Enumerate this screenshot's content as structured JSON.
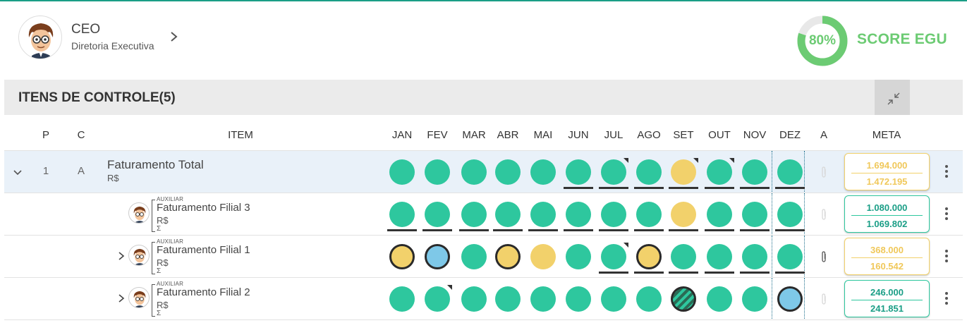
{
  "header": {
    "role_title": "CEO",
    "role_subtitle": "Diretoria Executiva",
    "score_pct": "80%",
    "score_value": 0.8,
    "score_label": "SCORE EGU",
    "score_color": "#6ccb73"
  },
  "section": {
    "title": "ITENS DE CONTROLE(5)"
  },
  "columns": {
    "p": "P",
    "c": "C",
    "item": "ITEM",
    "months": [
      "JAN",
      "FEV",
      "MAR",
      "ABR",
      "MAI",
      "JUN",
      "JUL",
      "AGO",
      "SET",
      "OUT",
      "NOV",
      "DEZ"
    ],
    "a": "A",
    "meta": "META"
  },
  "colors": {
    "green": "#2ec79e",
    "yellow": "#f2d16b",
    "blue": "#7ec8e8",
    "accent": "#1a9e86"
  },
  "rows": [
    {
      "p": "1",
      "c": "A",
      "name": "Faturamento Total",
      "unit": "R$",
      "months": [
        {
          "s": "g"
        },
        {
          "s": "g"
        },
        {
          "s": "g"
        },
        {
          "s": "g"
        },
        {
          "s": "g"
        },
        {
          "s": "g",
          "u": true
        },
        {
          "s": "g",
          "u": true,
          "c": true
        },
        {
          "s": "g",
          "u": true
        },
        {
          "s": "y",
          "u": true,
          "c": true
        },
        {
          "s": "g",
          "u": true,
          "c": true
        },
        {
          "s": "g",
          "u": true
        },
        {
          "s": "g",
          "u": true
        }
      ],
      "attachment": false,
      "meta_status": "y",
      "meta_target": "1.694.000",
      "meta_actual": "1.472.195"
    },
    {
      "aux": "AUXILIAR",
      "sigma": "Σ",
      "name": "Faturamento Filial 3",
      "unit": "R$",
      "months": [
        {
          "s": "g",
          "u": true
        },
        {
          "s": "g",
          "u": true
        },
        {
          "s": "g",
          "u": true
        },
        {
          "s": "g",
          "u": true
        },
        {
          "s": "g",
          "u": true
        },
        {
          "s": "g",
          "u": true
        },
        {
          "s": "g",
          "u": true
        },
        {
          "s": "g",
          "u": true
        },
        {
          "s": "y",
          "u": true
        },
        {
          "s": "g",
          "u": true
        },
        {
          "s": "g",
          "u": true
        },
        {
          "s": "g",
          "u": true
        }
      ],
      "attachment": false,
      "meta_status": "g",
      "meta_target": "1.080.000",
      "meta_actual": "1.069.802"
    },
    {
      "aux": "AUXILIAR",
      "sigma": "Σ",
      "name": "Faturamento Filial 1",
      "unit": "R$",
      "months": [
        {
          "s": "y",
          "r": true
        },
        {
          "s": "b",
          "r": true
        },
        {
          "s": "g"
        },
        {
          "s": "y",
          "r": true
        },
        {
          "s": "y"
        },
        {
          "s": "g"
        },
        {
          "s": "g",
          "u": true,
          "c": true
        },
        {
          "s": "y",
          "r": true,
          "u": true
        },
        {
          "s": "g",
          "u": true
        },
        {
          "s": "g",
          "u": true
        },
        {
          "s": "g",
          "u": true
        },
        {
          "s": "g",
          "u": true
        }
      ],
      "attachment": true,
      "meta_status": "y",
      "meta_target": "368.000",
      "meta_actual": "160.542"
    },
    {
      "aux": "AUXILIAR",
      "sigma": "Σ",
      "name": "Faturamento Filial 2",
      "unit": "R$",
      "months": [
        {
          "s": "g"
        },
        {
          "s": "g",
          "c": true
        },
        {
          "s": "g"
        },
        {
          "s": "g"
        },
        {
          "s": "g"
        },
        {
          "s": "g"
        },
        {
          "s": "g"
        },
        {
          "s": "g"
        },
        {
          "s": "stripe"
        },
        {
          "s": "g"
        },
        {
          "s": "g"
        },
        {
          "s": "b",
          "r": true
        }
      ],
      "attachment": false,
      "meta_status": "g",
      "meta_target": "246.000",
      "meta_actual": "241.851"
    }
  ]
}
